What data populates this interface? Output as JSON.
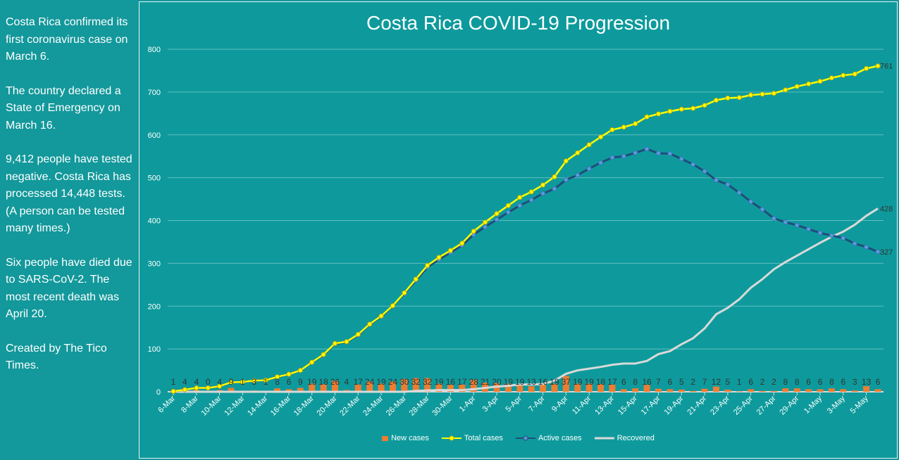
{
  "sidebar": {
    "paragraphs": [
      "Costa Rica confirmed its first coronavirus case on March 6.",
      "The country declared a State of Emergency on March 16.",
      "9,412 people have tested negative. Costa Rica has processed 14,448 tests. (A person can be tested many times.)",
      "Six people have died due to SARS-CoV-2. The most recent death was April 20.",
      "Created by The Tico Times."
    ]
  },
  "chart_data": {
    "type": "line",
    "title": "Costa Rica COVID-19 Progression",
    "ylim": [
      0,
      800
    ],
    "yticks": [
      0,
      100,
      200,
      300,
      400,
      500,
      600,
      700,
      800
    ],
    "grid": true,
    "legend_placement": "bottom",
    "x_tick_labels": [
      "6-Mar",
      "8-Mar",
      "10-Mar",
      "12-Mar",
      "14-Mar",
      "16-Mar",
      "18-Mar",
      "20-Mar",
      "22-Mar",
      "24-Mar",
      "26-Mar",
      "28-Mar",
      "30-Mar",
      "1-Apr",
      "3-Apr",
      "5-Apr",
      "7-Apr",
      "9-Apr",
      "11-Apr",
      "13-Apr",
      "15-Apr",
      "17-Apr",
      "19-Apr",
      "21-Apr",
      "23-Apr",
      "25-Apr",
      "27-Apr",
      "29-Apr",
      "1-May",
      "3-May",
      "5-May"
    ],
    "x_start": "6-Mar",
    "x_end": "6-May",
    "series": [
      {
        "name": "New cases",
        "kind": "bar",
        "color": "#ed7d31",
        "values": [
          1,
          4,
          4,
          0,
          4,
          9,
          1,
          3,
          1,
          8,
          6,
          9,
          19,
          18,
          26,
          4,
          17,
          24,
          19,
          24,
          30,
          32,
          32,
          19,
          16,
          17,
          28,
          21,
          20,
          19,
          19,
          13,
          16,
          19,
          37,
          19,
          19,
          18,
          17,
          6,
          8,
          16,
          7,
          6,
          5,
          2,
          7,
          12,
          5,
          1,
          6,
          2,
          2,
          8,
          8,
          6,
          6,
          8,
          6,
          3,
          13,
          6
        ]
      },
      {
        "name": "Total cases",
        "kind": "line",
        "color": "#ffff00",
        "end_label": "761",
        "values": [
          1,
          5,
          9,
          9,
          13,
          22,
          23,
          26,
          27,
          35,
          41,
          50,
          69,
          87,
          113,
          117,
          134,
          158,
          177,
          201,
          231,
          263,
          295,
          314,
          330,
          347,
          375,
          396,
          416,
          435,
          454,
          467,
          483,
          502,
          539,
          558,
          577,
          595,
          612,
          618,
          626,
          642,
          649,
          655,
          660,
          662,
          669,
          681,
          686,
          687,
          693,
          695,
          697,
          705,
          713,
          719,
          725,
          733,
          739,
          742,
          755,
          761
        ]
      },
      {
        "name": "Active cases",
        "kind": "line",
        "color": "#1f4e79",
        "marker_color": "#5b9bd5",
        "end_label": "327",
        "values": [
          1,
          5,
          9,
          9,
          13,
          22,
          23,
          26,
          27,
          35,
          41,
          50,
          69,
          86,
          112,
          116,
          133,
          157,
          176,
          200,
          230,
          260,
          291,
          309,
          325,
          342,
          367,
          385,
          402,
          419,
          435,
          448,
          463,
          474,
          495,
          506,
          521,
          535,
          547,
          550,
          558,
          567,
          557,
          556,
          544,
          531,
          515,
          494,
          484,
          465,
          444,
          426,
          405,
          396,
          389,
          380,
          371,
          365,
          359,
          346,
          338,
          327
        ]
      },
      {
        "name": "Recovered",
        "kind": "line",
        "color": "#d9d9d9",
        "end_label": "428",
        "values": [
          0,
          0,
          0,
          0,
          0,
          0,
          0,
          0,
          0,
          0,
          0,
          0,
          0,
          0,
          0,
          0,
          0,
          0,
          0,
          0,
          0,
          2,
          3,
          4,
          4,
          4,
          6,
          9,
          12,
          14,
          17,
          17,
          18,
          26,
          42,
          50,
          54,
          58,
          63,
          66,
          66,
          72,
          88,
          95,
          111,
          125,
          148,
          181,
          196,
          216,
          243,
          263,
          286,
          303,
          318,
          333,
          348,
          362,
          374,
          390,
          411,
          428
        ]
      }
    ]
  }
}
